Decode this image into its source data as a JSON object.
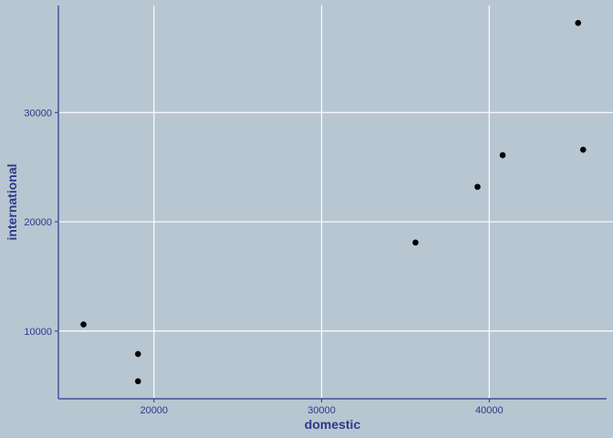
{
  "chart_data": {
    "type": "scatter",
    "title": "",
    "xlabel": "domestic",
    "ylabel": "international",
    "xlim": [
      14300,
      47000
    ],
    "ylim": [
      3800,
      39800
    ],
    "x_ticks": [
      20000,
      30000,
      40000
    ],
    "y_ticks": [
      10000,
      20000,
      30000
    ],
    "grid": "major",
    "legend": "none",
    "points": [
      {
        "x": 15800,
        "y": 10600
      },
      {
        "x": 19050,
        "y": 7900
      },
      {
        "x": 19050,
        "y": 5400
      },
      {
        "x": 35600,
        "y": 18100
      },
      {
        "x": 39300,
        "y": 23200
      },
      {
        "x": 40800,
        "y": 26100
      },
      {
        "x": 45300,
        "y": 38200
      },
      {
        "x": 45600,
        "y": 26600
      }
    ],
    "colors": {
      "panel": "#b8c6d2",
      "grid": "#ffffff",
      "axis": "#2b3a8a",
      "point": "#000000"
    }
  }
}
